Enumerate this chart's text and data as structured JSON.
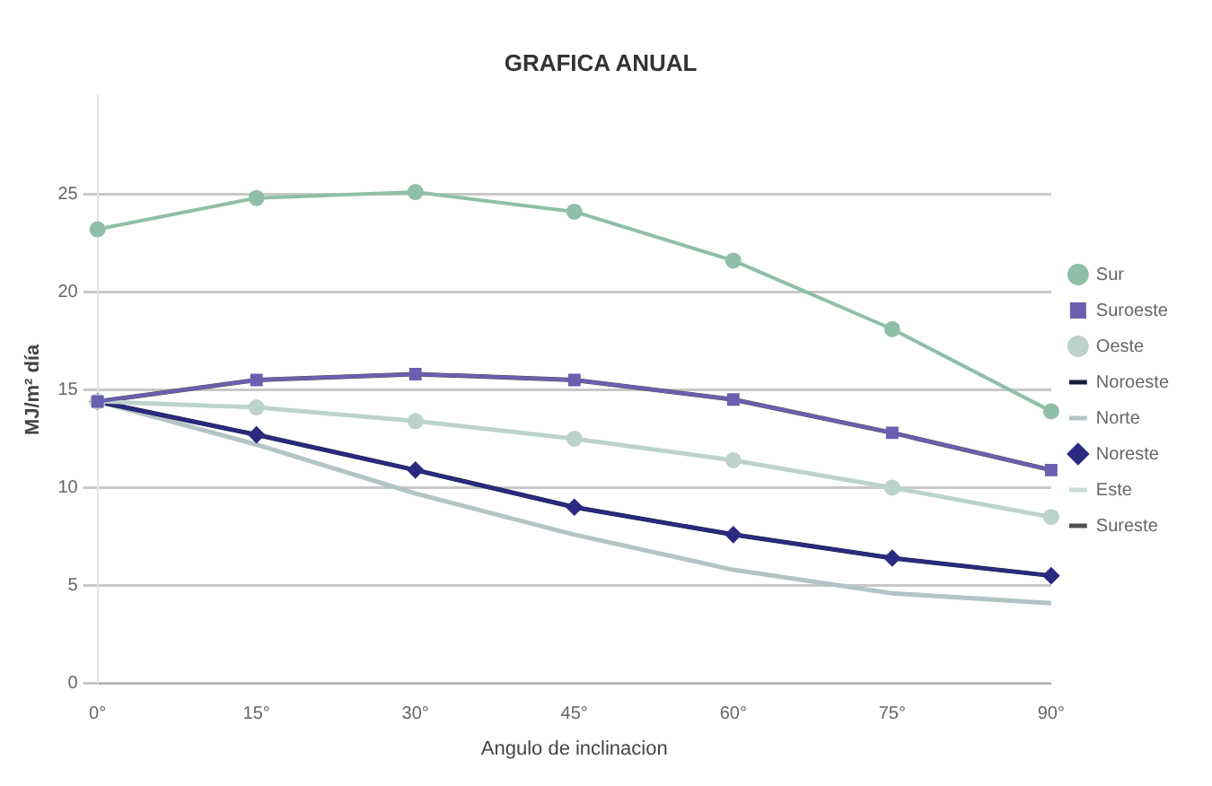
{
  "chart_data": {
    "type": "line",
    "title": "GRAFICA ANUAL",
    "xlabel": "Angulo de inclinacion",
    "ylabel": "MJ/m² día",
    "categories": [
      "0°",
      "15°",
      "30°",
      "45°",
      "60°",
      "75°",
      "90°"
    ],
    "series": [
      {
        "name": "Sur",
        "color": "#8fbfa8",
        "marker": "circle",
        "values": [
          23.2,
          24.8,
          25.1,
          24.1,
          21.6,
          18.1,
          13.9
        ]
      },
      {
        "name": "Suroeste",
        "color": "#6a5fb0",
        "marker": "square",
        "values": [
          14.4,
          15.5,
          15.8,
          15.5,
          14.5,
          12.8,
          10.9
        ]
      },
      {
        "name": "Oeste",
        "color": "#bcd3c9",
        "marker": "circle",
        "values": [
          14.4,
          14.1,
          13.4,
          12.5,
          11.4,
          10.0,
          8.5
        ]
      },
      {
        "name": "Noroeste",
        "color": "#1a1a40",
        "marker": "none",
        "values": [
          14.4,
          12.7,
          10.9,
          9.0,
          7.6,
          6.4,
          5.5
        ]
      },
      {
        "name": "Norte",
        "color": "#b4c4c4",
        "marker": "none",
        "values": [
          14.4,
          12.2,
          9.7,
          7.6,
          5.8,
          4.6,
          4.1
        ]
      },
      {
        "name": "Noreste",
        "color": "#2a2a80",
        "marker": "diamond",
        "values": [
          14.4,
          12.7,
          10.9,
          9.0,
          7.6,
          6.4,
          5.5
        ]
      },
      {
        "name": "Este",
        "color": "#c8dcd8",
        "marker": "none",
        "values": [
          14.4,
          14.1,
          13.4,
          12.5,
          11.4,
          10.0,
          8.5
        ]
      },
      {
        "name": "Sureste",
        "color": "#505050",
        "marker": "none",
        "values": [
          14.4,
          15.5,
          15.8,
          15.5,
          14.5,
          12.8,
          10.9
        ]
      }
    ],
    "ylim": [
      0,
      30
    ],
    "yticks": [
      0,
      5,
      10,
      15,
      20,
      25
    ],
    "grid": "y",
    "legend": "right",
    "line_style": "solid"
  }
}
